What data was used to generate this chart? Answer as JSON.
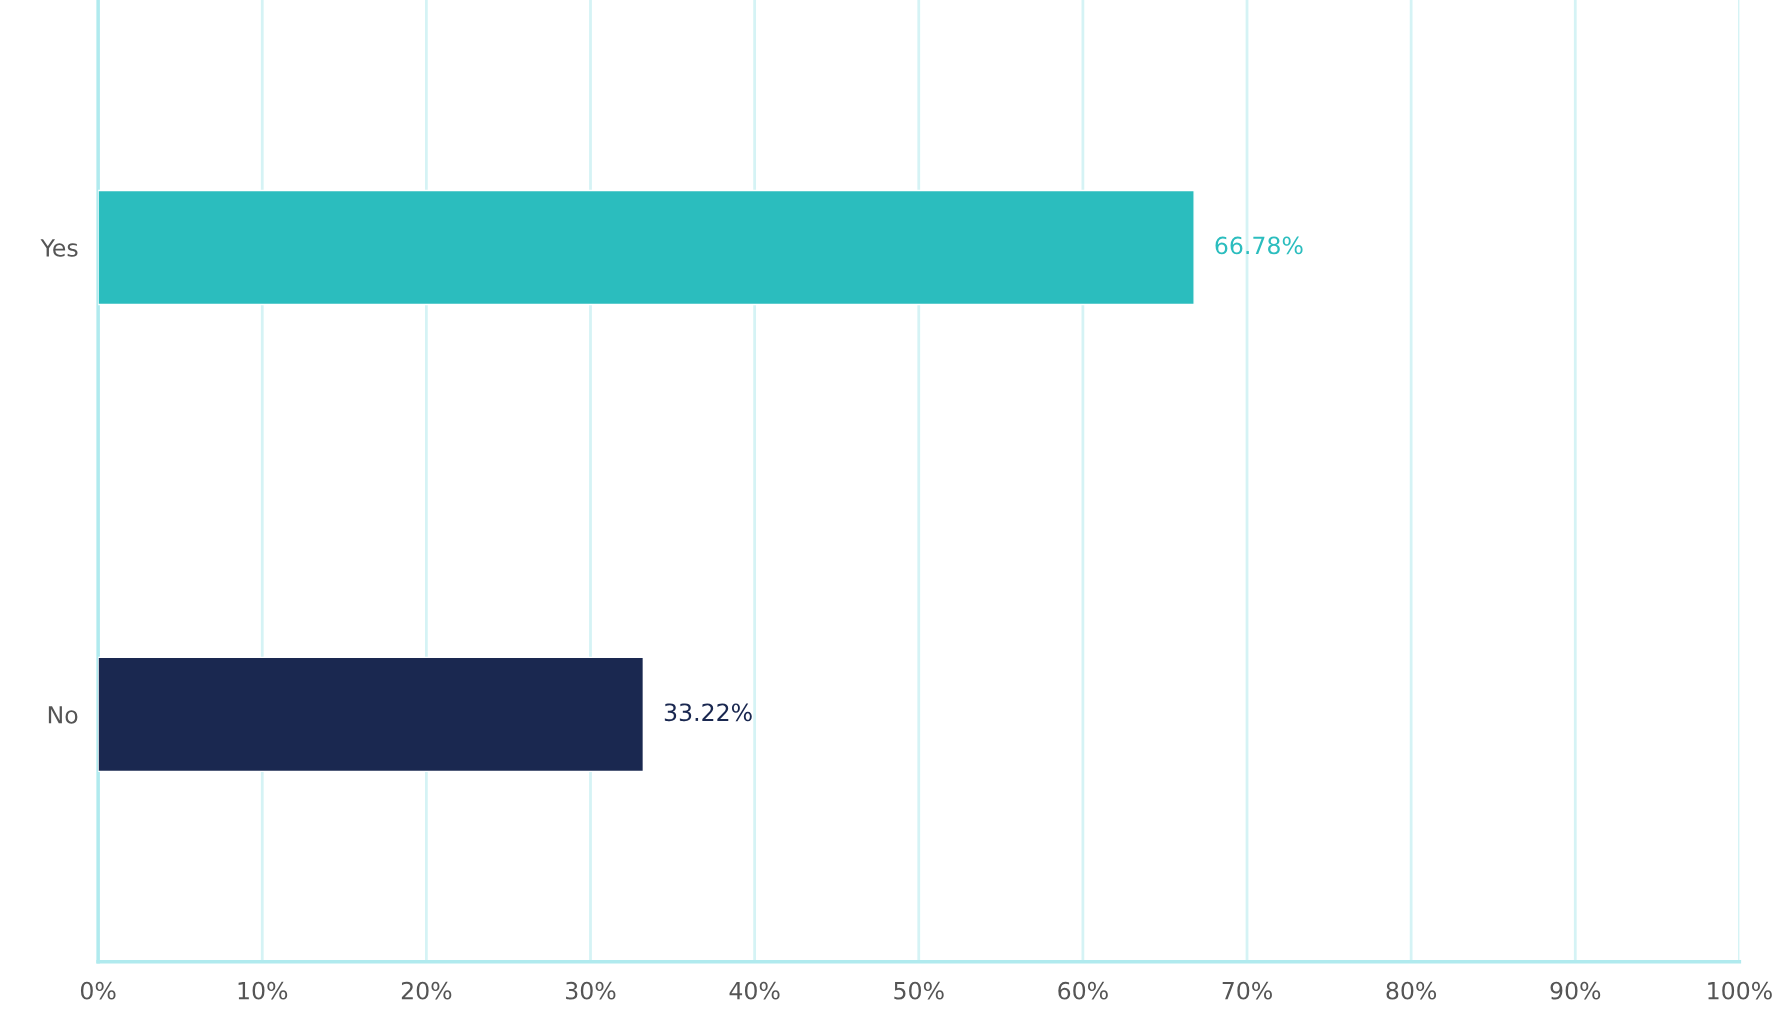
{
  "chart_data": {
    "type": "bar",
    "orientation": "horizontal",
    "categories": [
      "Yes",
      "No"
    ],
    "values": [
      66.78,
      33.22
    ],
    "colors": [
      "#2bbdbe",
      "#1a2850"
    ],
    "value_labels": [
      "66.78%",
      "33.22%"
    ],
    "xlim": [
      0,
      100
    ],
    "xticks": [
      {
        "value": 0,
        "label": "0%"
      },
      {
        "value": 10,
        "label": "10%"
      },
      {
        "value": 20,
        "label": "20%"
      },
      {
        "value": 30,
        "label": "30%"
      },
      {
        "value": 40,
        "label": "40%"
      },
      {
        "value": 50,
        "label": "50%"
      },
      {
        "value": 60,
        "label": "60%"
      },
      {
        "value": 70,
        "label": "70%"
      },
      {
        "value": 80,
        "label": "80%"
      },
      {
        "value": 90,
        "label": "90%"
      },
      {
        "value": 100,
        "label": "100%"
      }
    ],
    "grid": "x",
    "legend": false
  }
}
